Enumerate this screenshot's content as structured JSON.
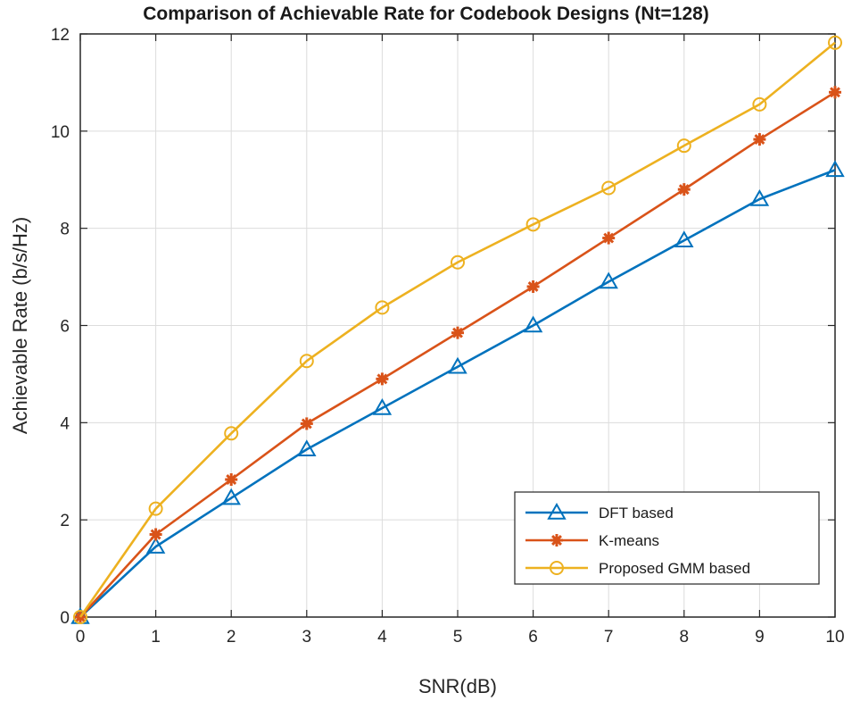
{
  "chart_data": {
    "type": "line",
    "title": "Comparison of Achievable Rate for Codebook Designs (Nt=128)",
    "xlabel": "SNR(dB)",
    "ylabel": "Achievable Rate (b/s/Hz)",
    "xlim": [
      0,
      10
    ],
    "ylim": [
      0,
      12
    ],
    "x": [
      0,
      1,
      2,
      3,
      4,
      5,
      6,
      7,
      8,
      9,
      10
    ],
    "xticks": [
      "0",
      "1",
      "2",
      "3",
      "4",
      "5",
      "6",
      "7",
      "8",
      "9",
      "10"
    ],
    "yticks": [
      "0",
      "2",
      "4",
      "6",
      "8",
      "10",
      "12"
    ],
    "grid": true,
    "legend_position": "bottom-right",
    "series": [
      {
        "name": "DFT based",
        "color": "#0072BD",
        "marker": "triangle",
        "values": [
          0,
          1.45,
          2.45,
          3.45,
          4.3,
          5.15,
          6.0,
          6.9,
          7.75,
          8.6,
          9.2
        ]
      },
      {
        "name": "K-means",
        "color": "#D95319",
        "marker": "asterisk",
        "values": [
          0,
          1.7,
          2.83,
          3.98,
          4.9,
          5.85,
          6.8,
          7.8,
          8.8,
          9.83,
          10.8
        ]
      },
      {
        "name": "Proposed GMM based",
        "color": "#EDB120",
        "marker": "circle",
        "values": [
          0,
          2.23,
          3.78,
          5.27,
          6.37,
          7.3,
          8.08,
          8.83,
          9.7,
          10.55,
          11.82
        ]
      }
    ]
  }
}
